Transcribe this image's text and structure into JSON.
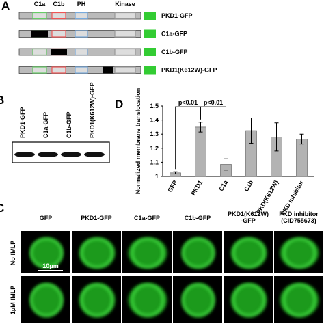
{
  "panels": {
    "a": "A",
    "b": "B",
    "c": "C",
    "d": "D"
  },
  "constructs": {
    "domains": [
      "C1a",
      "C1b",
      "PH",
      "Kinase"
    ],
    "names": [
      "PKD1-GFP",
      "C1a-GFP",
      "C1b-GFP",
      "PKD1(K612W)-GFP"
    ]
  },
  "blot": {
    "lanes": [
      "PKD1-GFP",
      "C1a-GFP",
      "C1b-GFP",
      "PKD1(K612W)-GFP"
    ]
  },
  "chart_data": {
    "type": "bar",
    "y_label": "Normalized membrane translocation",
    "categories": [
      "GFP",
      "PKD1",
      "C1a",
      "C1b",
      "PKD(K612W)",
      "PKD inhibitor"
    ],
    "values": [
      1.025,
      1.35,
      1.085,
      1.325,
      1.28,
      1.265
    ],
    "errors": [
      0.008,
      0.035,
      0.04,
      0.09,
      0.1,
      0.035
    ],
    "color": "#b3b3b3",
    "ylim": [
      1,
      1.5
    ],
    "yticks": [
      1,
      1.1,
      1.2,
      1.3,
      1.4,
      1.5
    ],
    "annotations": [
      "p<0.01",
      "p<0.01"
    ]
  },
  "images": {
    "columns": [
      [
        "GFP"
      ],
      [
        "PKD1-GFP"
      ],
      [
        "C1a-GFP"
      ],
      [
        "C1b-GFP"
      ],
      [
        "PKD1(K612W)",
        "-GFP"
      ],
      [
        "PKD inhibitor",
        "(CID755673)"
      ]
    ],
    "rows": [
      "No fMLP",
      "1μM fMLP"
    ],
    "scale_bar": "10μm"
  }
}
